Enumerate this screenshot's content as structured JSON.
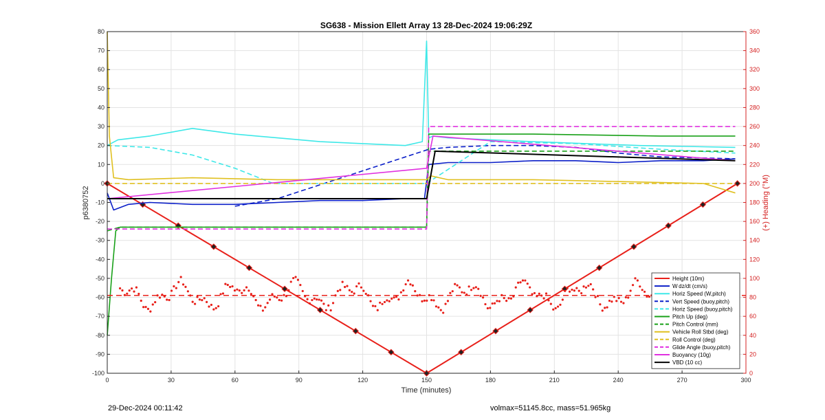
{
  "chart_data": {
    "type": "line",
    "title": "SG638 - Mission Ellett Array 13 28-Dec-2024 19:06:29Z",
    "xlabel": "Time (minutes)",
    "ylabel": "p6380752",
    "y2label": "(+) Heading (°M)",
    "xlim": [
      0,
      300
    ],
    "ylim": [
      -100,
      80
    ],
    "y2lim": [
      0,
      360
    ],
    "xticks": [
      0,
      30,
      60,
      90,
      120,
      150,
      180,
      210,
      240,
      270,
      300
    ],
    "yticks": [
      -100,
      -90,
      -80,
      -70,
      -60,
      -50,
      -40,
      -30,
      -20,
      -10,
      0,
      10,
      20,
      30,
      40,
      50,
      60,
      70,
      80
    ],
    "y2ticks": [
      0,
      20,
      40,
      60,
      80,
      100,
      120,
      140,
      160,
      180,
      200,
      220,
      240,
      260,
      280,
      300,
      320,
      340,
      360
    ],
    "grid": true,
    "legend_position": "bottom-right",
    "series": [
      {
        "name": "Height (10m)",
        "color": "#e8201a",
        "style": "solid",
        "marker": "diamond",
        "x": [
          0,
          150,
          296
        ],
        "y": [
          0,
          -100,
          0
        ]
      },
      {
        "name": "W dz/dt (cm/s)",
        "color": "#0a1ec8",
        "style": "solid",
        "x": [
          0,
          3,
          10,
          20,
          40,
          60,
          80,
          100,
          120,
          140,
          149,
          151,
          160,
          180,
          200,
          220,
          240,
          260,
          280,
          295
        ],
        "y": [
          -5,
          -14,
          -11,
          -10,
          -11,
          -11,
          -10,
          -9,
          -9,
          -8,
          -8,
          10,
          11,
          11,
          12,
          12,
          11,
          12,
          12,
          13
        ]
      },
      {
        "name": "Horiz Speed (W,pitch)",
        "color": "#3ee8e8",
        "style": "solid",
        "x": [
          0,
          5,
          20,
          40,
          60,
          80,
          100,
          120,
          140,
          148,
          150,
          151,
          153,
          160,
          200,
          250,
          295
        ],
        "y": [
          20,
          23,
          25,
          29,
          26,
          24,
          22,
          21,
          20,
          22,
          75,
          24,
          25,
          24,
          22,
          20,
          19
        ]
      },
      {
        "name": "Vert Speed (buoy,pitch)",
        "color": "#0a1ec8",
        "style": "dash",
        "x": [
          60,
          80,
          151,
          160,
          180,
          200,
          220,
          240,
          260,
          295
        ],
        "y": [
          -12,
          -8,
          18,
          19,
          20,
          20,
          19,
          16,
          14,
          13
        ]
      },
      {
        "name": "Horiz Speed (buoy,pitch)",
        "color": "#3ee8e8",
        "style": "dash",
        "x": [
          0,
          20,
          40,
          60,
          78,
          150,
          180,
          220,
          260,
          295
        ],
        "y": [
          20,
          19,
          15,
          8,
          0,
          0,
          22,
          21,
          18,
          16
        ]
      },
      {
        "name": "Pitch Up (deg)",
        "color": "#18a018",
        "style": "solid",
        "x": [
          0,
          2,
          4,
          6,
          150,
          151,
          200,
          260,
          295
        ],
        "y": [
          -80,
          -50,
          -25,
          -23,
          -23,
          26,
          26,
          25,
          25
        ]
      },
      {
        "name": "Pitch Control (mm)",
        "color": "#18a018",
        "style": "dash",
        "x": [
          0,
          6,
          150,
          151,
          295
        ],
        "y": [
          -25,
          -23,
          -23,
          17,
          17
        ]
      },
      {
        "name": "Vehicle Roll Stbd (deg)",
        "color": "#e0c020",
        "style": "solid",
        "x": [
          0,
          1,
          3,
          10,
          40,
          80,
          120,
          150,
          152,
          160,
          200,
          240,
          280,
          295
        ],
        "y": [
          80,
          25,
          3,
          2,
          3,
          2,
          2,
          2,
          4,
          2,
          2,
          1,
          0,
          -5
        ]
      },
      {
        "name": "Roll Control (deg)",
        "color": "#e0c020",
        "style": "dash",
        "x": [
          0,
          150,
          151,
          295
        ],
        "y": [
          0,
          0,
          0,
          0
        ]
      },
      {
        "name": "Glide Angle (buoy,pitch)",
        "color": "#e030e0",
        "style": "dash",
        "x": [
          0,
          150,
          151,
          295
        ],
        "y": [
          -24,
          -24,
          30,
          30
        ]
      },
      {
        "name": "Buoyancy (10g)",
        "color": "#e030e0",
        "style": "solid",
        "x": [
          0,
          150,
          153,
          295
        ],
        "y": [
          -8,
          8,
          25,
          12
        ]
      },
      {
        "name": "VBD (10 cc)",
        "color": "#000000",
        "style": "solid",
        "x": [
          0,
          150,
          154,
          295
        ],
        "y": [
          -8,
          -8,
          17,
          12
        ]
      }
    ],
    "heading": {
      "name": "Heading",
      "color": "#e8201a",
      "reference": 82
    }
  },
  "footer": {
    "left": "29-Dec-2024 00:11:42",
    "right": "volmax=51145.8cc, mass=51.965kg"
  }
}
